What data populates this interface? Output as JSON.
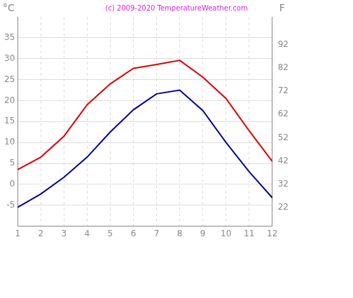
{
  "chart_data": {
    "type": "line",
    "title": "(c) 2009-2020 TemperatureWeather.com",
    "ylabel": "°C",
    "y2label": "F",
    "categories": [
      "1",
      "2",
      "3",
      "4",
      "5",
      "6",
      "7",
      "8",
      "9",
      "10",
      "11",
      "12"
    ],
    "series": [
      {
        "color": "#dd0000",
        "values": [
          3.5,
          6.5,
          11.5,
          19,
          24,
          27.7,
          28.6,
          29.6,
          25.6,
          20.5,
          12.8,
          5.5
        ]
      },
      {
        "color": "#000099",
        "values": [
          -5.5,
          -2.3,
          1.7,
          6.5,
          12.5,
          17.8,
          21.6,
          22.5,
          17.6,
          10,
          3,
          -3.2
        ]
      }
    ],
    "ylim": [
      -10,
      40
    ],
    "yticks": [
      -5,
      0,
      5,
      10,
      15,
      20,
      25,
      30,
      35
    ],
    "y2lim": [
      14,
      104
    ],
    "y2ticks": [
      22,
      32,
      42,
      52,
      62,
      72,
      82,
      92
    ],
    "grid": true
  }
}
